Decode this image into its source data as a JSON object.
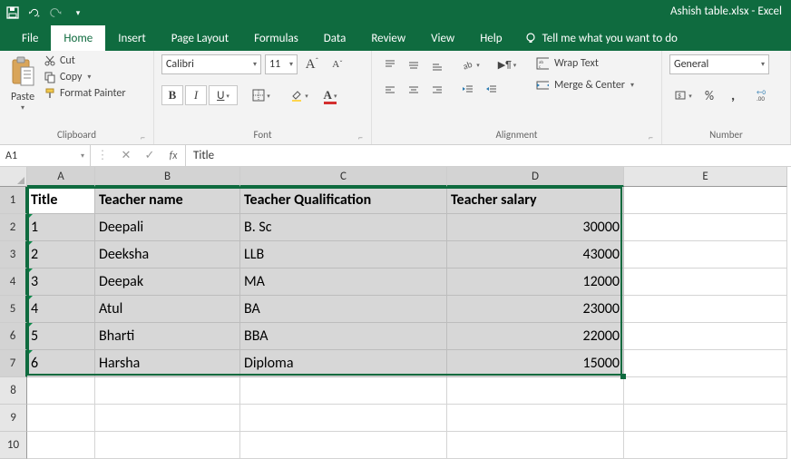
{
  "app": {
    "title": "Ashish table.xlsx - Excel"
  },
  "tabs": {
    "file": "File",
    "home": "Home",
    "insert": "Insert",
    "page_layout": "Page Layout",
    "formulas": "Formulas",
    "data": "Data",
    "review": "Review",
    "view": "View",
    "help": "Help",
    "tell_me": "Tell me what you want to do"
  },
  "ribbon": {
    "clipboard": {
      "paste": "Paste",
      "cut": "Cut",
      "copy": "Copy",
      "format_painter": "Format Painter",
      "label": "Clipboard"
    },
    "font": {
      "name": "Calibri",
      "size": "11",
      "label": "Font"
    },
    "alignment": {
      "wrap_text": "Wrap Text",
      "merge_center": "Merge & Center",
      "label": "Alignment"
    },
    "number": {
      "format": "General",
      "label": "Number"
    }
  },
  "namebox": {
    "ref": "A1"
  },
  "formula_bar": {
    "value": "Title"
  },
  "columns": {
    "widths": [
      75,
      160,
      228,
      195,
      180
    ],
    "labels": [
      "A",
      "B",
      "C",
      "D",
      "E"
    ],
    "selected": [
      0,
      1,
      2,
      3
    ]
  },
  "row_heights": {
    "default": 30
  },
  "selection": {
    "rows": 7,
    "cols": 4,
    "active_row": 0,
    "active_col": 0
  },
  "sheet": {
    "headers": [
      "Title",
      "Teacher name",
      "Teacher Qualification",
      "Teacher salary"
    ],
    "rows": [
      {
        "title": "1",
        "name": "Deepali",
        "qual": "B. Sc",
        "salary": "30000"
      },
      {
        "title": "2",
        "name": "Deeksha",
        "qual": "LLB",
        "salary": "43000"
      },
      {
        "title": "3",
        "name": "Deepak",
        "qual": "MA",
        "salary": "12000"
      },
      {
        "title": "4",
        "name": "Atul",
        "qual": "BA",
        "salary": "23000"
      },
      {
        "title": "5",
        "name": "Bharti",
        "qual": "BBA",
        "salary": "22000"
      },
      {
        "title": "6",
        "name": "Harsha",
        "qual": "Diploma",
        "salary": "15000"
      }
    ],
    "empty_rows": [
      8,
      9,
      10
    ]
  },
  "colors": {
    "brand": "#0f6b3f",
    "ribbon_bg": "#f3f3f3",
    "border": "#d0d0d0",
    "sel_bg": "#d7d7d7",
    "header_bg": "#e6e6e6"
  }
}
